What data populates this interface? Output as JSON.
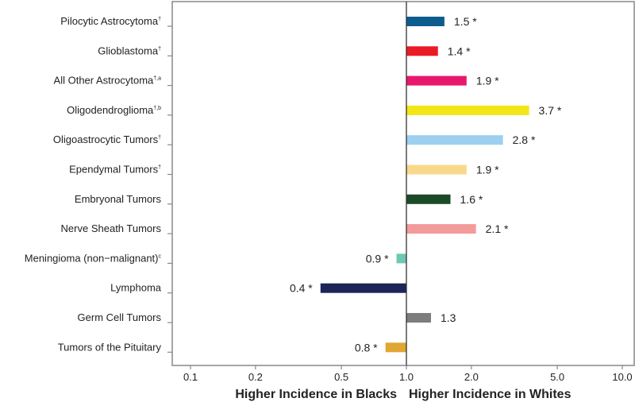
{
  "chart_data": {
    "type": "bar",
    "orientation": "horizontal",
    "scale": "log",
    "reference_value": 1.0,
    "xlim": [
      0.08,
      10.5
    ],
    "grid": false,
    "legend": "none",
    "xticks": [
      {
        "value": 0.1,
        "label": "0.1"
      },
      {
        "value": 0.2,
        "label": "0.2"
      },
      {
        "value": 0.5,
        "label": "0.5"
      },
      {
        "value": 1.0,
        "label": "1.0"
      },
      {
        "value": 2.0,
        "label": "2.0"
      },
      {
        "value": 5.0,
        "label": "5.0"
      },
      {
        "value": 10.0,
        "label": "10.0"
      }
    ],
    "xlabel_left": "Higher Incidence in Blacks",
    "xlabel_right": "Higher Incidence in Whites",
    "bars": [
      {
        "name": "Pilocytic Astrocytoma",
        "sup": "†",
        "value": 1.5,
        "label": "1.5 *",
        "color": "#0d5c8e"
      },
      {
        "name": "Glioblastoma",
        "sup": "†",
        "value": 1.4,
        "label": "1.4 *",
        "color": "#ea1b24"
      },
      {
        "name": "All Other Astrocytoma",
        "sup": "†,a",
        "value": 1.9,
        "label": "1.9 *",
        "color": "#e8186e"
      },
      {
        "name": "Oligodendroglioma",
        "sup": "†,b",
        "value": 3.7,
        "label": "3.7 *",
        "color": "#f4e516"
      },
      {
        "name": "Oligoastrocytic Tumors",
        "sup": "†",
        "value": 2.8,
        "label": "2.8 *",
        "color": "#9dd0ee"
      },
      {
        "name": "Ependymal Tumors",
        "sup": "†",
        "value": 1.9,
        "label": "1.9 *",
        "color": "#f8d98b"
      },
      {
        "name": "Embryonal Tumors",
        "sup": "",
        "value": 1.6,
        "label": "1.6 *",
        "color": "#1b4a27"
      },
      {
        "name": "Nerve Sheath Tumors",
        "sup": "",
        "value": 2.1,
        "label": "2.1 *",
        "color": "#f39a9b"
      },
      {
        "name": "Meningioma (non−malignant)",
        "sup": "c",
        "value": 0.9,
        "label": "0.9 *",
        "color": "#6ec8b2"
      },
      {
        "name": "Lymphoma",
        "sup": "",
        "value": 0.4,
        "label": "0.4 *",
        "color": "#1c2558"
      },
      {
        "name": "Germ Cell Tumors",
        "sup": "",
        "value": 1.3,
        "label": "1.3",
        "color": "#7d7d7d"
      },
      {
        "name": "Tumors of the Pituitary",
        "sup": "",
        "value": 0.8,
        "label": "0.8 *",
        "color": "#e0a832"
      }
    ]
  }
}
